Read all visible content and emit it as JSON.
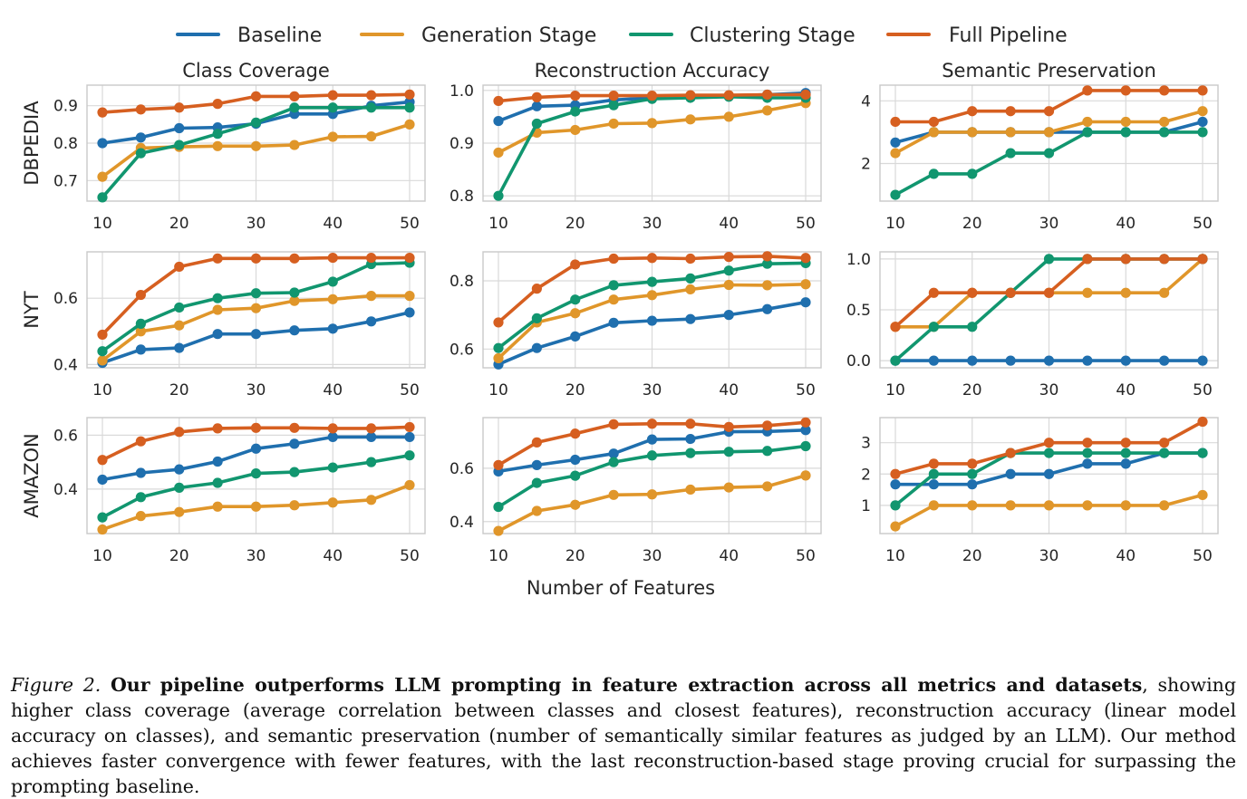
{
  "colors": {
    "Baseline": "#1f6fae",
    "Generation Stage": "#e0962a",
    "Clustering Stage": "#11966f",
    "Full Pipeline": "#d65f20",
    "grid": "#d9d9d9",
    "frame": "#c9c9c9"
  },
  "legend": [
    "Baseline",
    "Generation Stage",
    "Clustering Stage",
    "Full Pipeline"
  ],
  "column_titles": [
    "Class Coverage",
    "Reconstruction Accuracy",
    "Semantic Preservation"
  ],
  "row_labels": [
    "DBPEDIA",
    "NYT",
    "AMAZON"
  ],
  "xlabel": "Number of Features",
  "caption": {
    "label": "Figure 2.",
    "bold": "Our pipeline outperforms LLM prompting in feature extraction across all metrics and datasets",
    "rest": ", showing higher class coverage (average correlation between classes and closest features), reconstruction accuracy (linear model accuracy on classes), and semantic preservation (number of semantically similar features as judged by an LLM). Our method achieves faster convergence with fewer features, with the last reconstruction-based stage proving crucial for surpassing the prompting baseline."
  },
  "chart_data": [
    {
      "type": "line",
      "row": "DBPEDIA",
      "metric": "Class Coverage",
      "x": [
        10,
        15,
        20,
        25,
        30,
        35,
        40,
        45,
        50
      ],
      "xticks": [
        10,
        20,
        30,
        40,
        50
      ],
      "ylim": [
        0.645,
        0.955
      ],
      "yticks": [
        0.7,
        0.8,
        0.9
      ],
      "tick_labels": [
        "0.7",
        "0.8",
        "0.9"
      ],
      "series": [
        {
          "name": "Baseline",
          "values": [
            0.8,
            0.815,
            0.84,
            0.842,
            0.852,
            0.878,
            0.878,
            0.9,
            0.91
          ]
        },
        {
          "name": "Generation Stage",
          "values": [
            0.71,
            0.787,
            0.79,
            0.792,
            0.792,
            0.795,
            0.817,
            0.818,
            0.85
          ]
        },
        {
          "name": "Clustering Stage",
          "values": [
            0.655,
            0.773,
            0.795,
            0.825,
            0.855,
            0.895,
            0.895,
            0.895,
            0.895
          ]
        },
        {
          "name": "Full Pipeline",
          "values": [
            0.882,
            0.89,
            0.895,
            0.905,
            0.925,
            0.925,
            0.928,
            0.928,
            0.93
          ]
        }
      ]
    },
    {
      "type": "line",
      "row": "DBPEDIA",
      "metric": "Reconstruction Accuracy",
      "x": [
        10,
        15,
        20,
        25,
        30,
        35,
        40,
        45,
        50
      ],
      "xticks": [
        10,
        20,
        30,
        40,
        50
      ],
      "ylim": [
        0.79,
        1.01
      ],
      "yticks": [
        0.8,
        0.9,
        1.0
      ],
      "tick_labels": [
        "0.8",
        "0.9",
        "1.0"
      ],
      "series": [
        {
          "name": "Baseline",
          "values": [
            0.942,
            0.97,
            0.972,
            0.982,
            0.986,
            0.99,
            0.99,
            0.992,
            0.995
          ]
        },
        {
          "name": "Generation Stage",
          "values": [
            0.882,
            0.92,
            0.925,
            0.937,
            0.938,
            0.945,
            0.95,
            0.962,
            0.976
          ]
        },
        {
          "name": "Clustering Stage",
          "values": [
            0.8,
            0.937,
            0.96,
            0.972,
            0.984,
            0.986,
            0.988,
            0.986,
            0.986
          ]
        },
        {
          "name": "Full Pipeline",
          "values": [
            0.98,
            0.987,
            0.99,
            0.99,
            0.99,
            0.991,
            0.991,
            0.992,
            0.992
          ]
        }
      ]
    },
    {
      "type": "line",
      "row": "DBPEDIA",
      "metric": "Semantic Preservation",
      "x": [
        10,
        15,
        20,
        25,
        30,
        35,
        40,
        45,
        50
      ],
      "xticks": [
        10,
        20,
        30,
        40,
        50
      ],
      "ylim": [
        0.8,
        4.5
      ],
      "yticks": [
        2,
        4
      ],
      "tick_labels": [
        "2",
        "4"
      ],
      "series": [
        {
          "name": "Baseline",
          "values": [
            2.67,
            3.0,
            3.0,
            3.0,
            3.0,
            3.0,
            3.0,
            3.0,
            3.33
          ]
        },
        {
          "name": "Generation Stage",
          "values": [
            2.33,
            3.0,
            3.0,
            3.0,
            3.0,
            3.33,
            3.33,
            3.33,
            3.67
          ]
        },
        {
          "name": "Clustering Stage",
          "values": [
            1.0,
            1.67,
            1.67,
            2.33,
            2.33,
            3.0,
            3.0,
            3.0,
            3.0
          ]
        },
        {
          "name": "Full Pipeline",
          "values": [
            3.33,
            3.33,
            3.67,
            3.67,
            3.67,
            4.33,
            4.33,
            4.33,
            4.33
          ]
        }
      ]
    },
    {
      "type": "line",
      "row": "NYT",
      "metric": "Class Coverage",
      "x": [
        10,
        15,
        20,
        25,
        30,
        35,
        40,
        45,
        50
      ],
      "xticks": [
        10,
        20,
        30,
        40,
        50
      ],
      "ylim": [
        0.39,
        0.74
      ],
      "yticks": [
        0.4,
        0.6
      ],
      "tick_labels": [
        "0.4",
        "0.6"
      ],
      "series": [
        {
          "name": "Baseline",
          "values": [
            0.405,
            0.445,
            0.45,
            0.492,
            0.492,
            0.503,
            0.508,
            0.53,
            0.557
          ]
        },
        {
          "name": "Generation Stage",
          "values": [
            0.412,
            0.5,
            0.518,
            0.565,
            0.57,
            0.592,
            0.597,
            0.607,
            0.607
          ]
        },
        {
          "name": "Clustering Stage",
          "values": [
            0.44,
            0.523,
            0.572,
            0.6,
            0.615,
            0.617,
            0.65,
            0.703,
            0.707
          ]
        },
        {
          "name": "Full Pipeline",
          "values": [
            0.49,
            0.61,
            0.695,
            0.72,
            0.72,
            0.72,
            0.722,
            0.722,
            0.722
          ]
        }
      ]
    },
    {
      "type": "line",
      "row": "NYT",
      "metric": "Reconstruction Accuracy",
      "x": [
        10,
        15,
        20,
        25,
        30,
        35,
        40,
        45,
        50
      ],
      "xticks": [
        10,
        20,
        30,
        40,
        50
      ],
      "ylim": [
        0.545,
        0.885
      ],
      "yticks": [
        0.6,
        0.8
      ],
      "tick_labels": [
        "0.6",
        "0.8"
      ],
      "series": [
        {
          "name": "Baseline",
          "values": [
            0.555,
            0.603,
            0.637,
            0.677,
            0.683,
            0.688,
            0.7,
            0.717,
            0.737
          ]
        },
        {
          "name": "Generation Stage",
          "values": [
            0.573,
            0.678,
            0.705,
            0.745,
            0.758,
            0.775,
            0.788,
            0.787,
            0.79
          ]
        },
        {
          "name": "Clustering Stage",
          "values": [
            0.603,
            0.69,
            0.745,
            0.787,
            0.797,
            0.807,
            0.83,
            0.85,
            0.852
          ]
        },
        {
          "name": "Full Pipeline",
          "values": [
            0.678,
            0.777,
            0.848,
            0.865,
            0.867,
            0.865,
            0.87,
            0.872,
            0.867
          ]
        }
      ]
    },
    {
      "type": "line",
      "row": "NYT",
      "metric": "Semantic Preservation",
      "x": [
        10,
        15,
        20,
        25,
        30,
        35,
        40,
        45,
        50
      ],
      "xticks": [
        10,
        20,
        30,
        40,
        50
      ],
      "ylim": [
        -0.07,
        1.07
      ],
      "yticks": [
        0,
        0.5,
        1.0
      ],
      "tick_labels": [
        "0.0",
        "0.5",
        "1.0"
      ],
      "series": [
        {
          "name": "Baseline",
          "values": [
            0,
            0,
            0,
            0,
            0,
            0,
            0,
            0,
            0
          ]
        },
        {
          "name": "Generation Stage",
          "values": [
            0.333,
            0.333,
            0.667,
            0.667,
            0.667,
            0.667,
            0.667,
            0.667,
            1.0
          ]
        },
        {
          "name": "Clustering Stage",
          "values": [
            0,
            0.333,
            0.333,
            0.667,
            1.0,
            1.0,
            1.0,
            1.0,
            1.0
          ]
        },
        {
          "name": "Full Pipeline",
          "values": [
            0.333,
            0.667,
            0.667,
            0.667,
            0.667,
            1.0,
            1.0,
            1.0,
            1.0
          ]
        }
      ]
    },
    {
      "type": "line",
      "row": "AMAZON",
      "metric": "Class Coverage",
      "x": [
        10,
        15,
        20,
        25,
        30,
        35,
        40,
        45,
        50
      ],
      "xticks": [
        10,
        20,
        30,
        40,
        50
      ],
      "ylim": [
        0.235,
        0.665
      ],
      "yticks": [
        0.4,
        0.6
      ],
      "tick_labels": [
        "0.4",
        "0.6"
      ],
      "series": [
        {
          "name": "Baseline",
          "values": [
            0.435,
            0.46,
            0.473,
            0.502,
            0.55,
            0.568,
            0.593,
            0.593,
            0.593
          ]
        },
        {
          "name": "Generation Stage",
          "values": [
            0.25,
            0.3,
            0.315,
            0.335,
            0.335,
            0.34,
            0.35,
            0.36,
            0.415
          ]
        },
        {
          "name": "Clustering Stage",
          "values": [
            0.295,
            0.37,
            0.405,
            0.423,
            0.458,
            0.463,
            0.48,
            0.5,
            0.525
          ]
        },
        {
          "name": "Full Pipeline",
          "values": [
            0.508,
            0.577,
            0.612,
            0.625,
            0.627,
            0.627,
            0.625,
            0.625,
            0.63
          ]
        }
      ]
    },
    {
      "type": "line",
      "row": "AMAZON",
      "metric": "Reconstruction Accuracy",
      "x": [
        10,
        15,
        20,
        25,
        30,
        35,
        40,
        45,
        50
      ],
      "xticks": [
        10,
        20,
        30,
        40,
        50
      ],
      "ylim": [
        0.355,
        0.79
      ],
      "yticks": [
        0.4,
        0.6
      ],
      "tick_labels": [
        "0.4",
        "0.6"
      ],
      "series": [
        {
          "name": "Baseline",
          "values": [
            0.588,
            0.612,
            0.632,
            0.655,
            0.708,
            0.71,
            0.737,
            0.738,
            0.743
          ]
        },
        {
          "name": "Generation Stage",
          "values": [
            0.365,
            0.44,
            0.463,
            0.5,
            0.502,
            0.52,
            0.528,
            0.532,
            0.573
          ]
        },
        {
          "name": "Clustering Stage",
          "values": [
            0.455,
            0.545,
            0.572,
            0.623,
            0.648,
            0.657,
            0.662,
            0.665,
            0.683
          ]
        },
        {
          "name": "Full Pipeline",
          "values": [
            0.612,
            0.697,
            0.73,
            0.765,
            0.767,
            0.767,
            0.755,
            0.76,
            0.772
          ]
        }
      ]
    },
    {
      "type": "line",
      "row": "AMAZON",
      "metric": "Semantic Preservation",
      "x": [
        10,
        15,
        20,
        25,
        30,
        35,
        40,
        45,
        50
      ],
      "xticks": [
        10,
        20,
        30,
        40,
        50
      ],
      "ylim": [
        0.1,
        3.8
      ],
      "yticks": [
        1,
        2,
        3
      ],
      "tick_labels": [
        "1",
        "2",
        "3"
      ],
      "series": [
        {
          "name": "Baseline",
          "values": [
            1.67,
            1.67,
            1.67,
            2.0,
            2.0,
            2.33,
            2.33,
            2.67,
            2.67
          ]
        },
        {
          "name": "Generation Stage",
          "values": [
            0.33,
            1.0,
            1.0,
            1.0,
            1.0,
            1.0,
            1.0,
            1.0,
            1.33
          ]
        },
        {
          "name": "Clustering Stage",
          "values": [
            1.0,
            2.0,
            2.0,
            2.67,
            2.67,
            2.67,
            2.67,
            2.67,
            2.67
          ]
        },
        {
          "name": "Full Pipeline",
          "values": [
            2.0,
            2.33,
            2.33,
            2.67,
            3.0,
            3.0,
            3.0,
            3.0,
            3.67
          ]
        }
      ]
    }
  ]
}
